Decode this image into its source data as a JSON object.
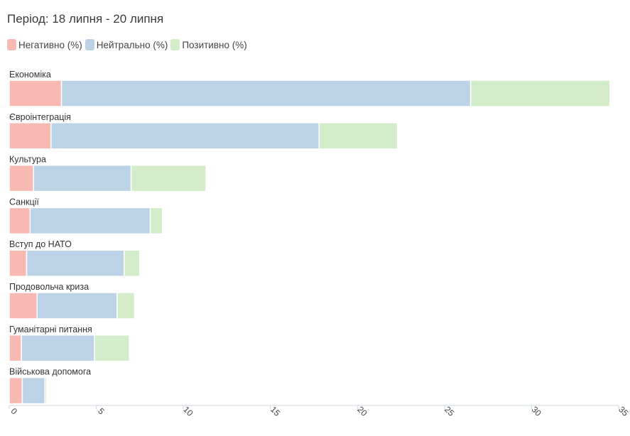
{
  "title": "Період: 18 липня - 20 липня",
  "colors": {
    "negative": "#f9b9b3",
    "neutral": "#bcd3e7",
    "positive": "#d3ecca",
    "axis": "#cfd8e0"
  },
  "chart_data": {
    "type": "bar",
    "orientation": "horizontal",
    "stacked": true,
    "categories": [
      "Економіка",
      "Євроінтеграція",
      "Культура",
      "Санкції",
      "Вступ до НАТО",
      "Продовольча криза",
      "Гуманітарні питання",
      "Військова допомога"
    ],
    "series": [
      {
        "name": "Негативно (%)",
        "color": "#f9b9b3",
        "values": [
          3.0,
          2.4,
          1.4,
          1.2,
          1.0,
          1.6,
          0.7,
          0.75
        ]
      },
      {
        "name": "Нейтрально (%)",
        "color": "#bcd3e7",
        "values": [
          23.5,
          15.4,
          5.6,
          6.9,
          5.6,
          4.6,
          4.2,
          1.3
        ]
      },
      {
        "name": "Позитивно (%)",
        "color": "#d3ecca",
        "values": [
          8.0,
          4.5,
          4.3,
          0.7,
          0.9,
          1.0,
          2.0,
          0.1
        ]
      }
    ],
    "xlim": [
      0,
      35
    ],
    "xticks": [
      0,
      5,
      10,
      15,
      20,
      25,
      30,
      35
    ],
    "legend_position": "top-left",
    "grid": false
  }
}
